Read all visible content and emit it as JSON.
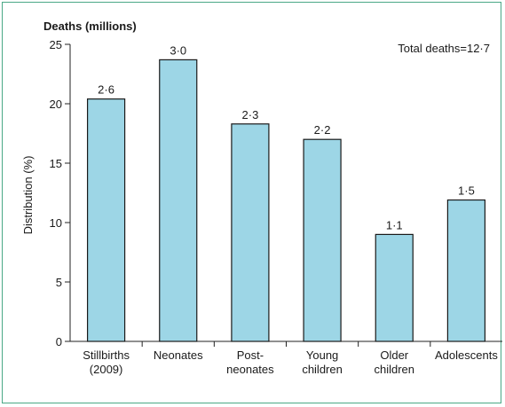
{
  "chart_data": {
    "type": "bar",
    "title": "Deaths (millions)",
    "annotation": "Total deaths=12·7",
    "ylabel": "Distribution (%)",
    "xlabel": "",
    "ylim": [
      0,
      25
    ],
    "yticks": [
      0,
      5,
      10,
      15,
      20,
      25
    ],
    "grid": false,
    "bar_color": "#9dd6e6",
    "categories": [
      [
        "Stillbirths",
        "(2009)"
      ],
      [
        "Neonates"
      ],
      [
        "Post-",
        "neonates"
      ],
      [
        "Young",
        "children"
      ],
      [
        "Older",
        "children"
      ],
      [
        "Adolescents"
      ]
    ],
    "values": [
      20.4,
      23.7,
      18.3,
      17.0,
      9.0,
      11.9
    ],
    "data_labels": [
      "2·6",
      "3·0",
      "2·3",
      "2·2",
      "1·1",
      "1·5"
    ]
  }
}
